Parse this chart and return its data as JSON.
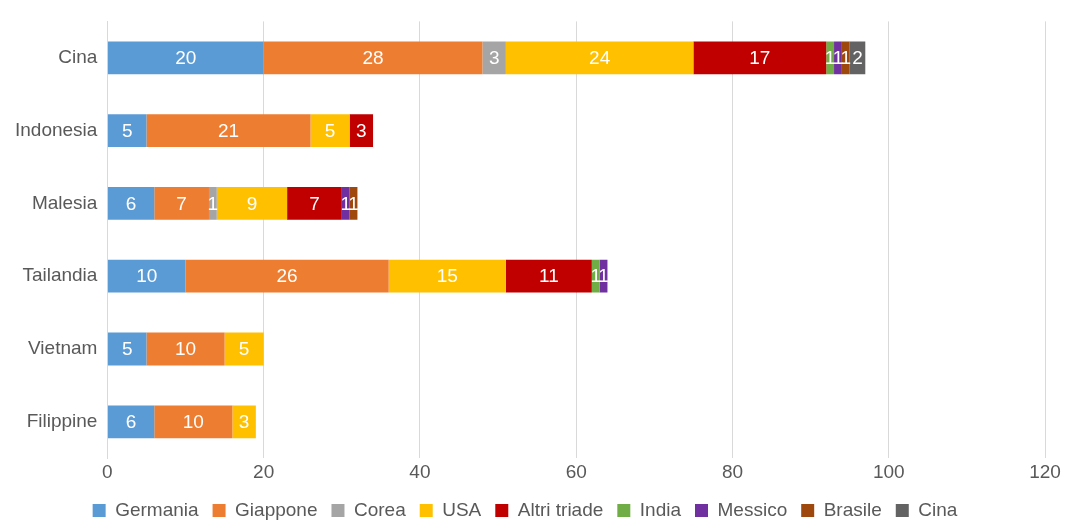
{
  "chart_data": {
    "type": "bar",
    "orientation": "horizontal",
    "stacked": true,
    "data_labels": true,
    "grid": "x",
    "legend": "bottom",
    "categories": [
      "Cina",
      "Indonesia",
      "Malesia",
      "Tailandia",
      "Vietnam",
      "Filippine"
    ],
    "xlim": [
      0,
      120
    ],
    "xticks": [
      0,
      20,
      40,
      60,
      80,
      100,
      120
    ],
    "series": [
      {
        "name": "Germania",
        "color": "#5b9bd5",
        "values": [
          20,
          5,
          6,
          10,
          5,
          6
        ]
      },
      {
        "name": "Giappone",
        "color": "#ed7d31",
        "values": [
          28,
          21,
          7,
          26,
          10,
          10
        ]
      },
      {
        "name": "Corea",
        "color": "#a5a5a5",
        "values": [
          3,
          null,
          1,
          null,
          null,
          null
        ]
      },
      {
        "name": "USA",
        "color": "#ffc000",
        "values": [
          24,
          5,
          9,
          15,
          5,
          3
        ]
      },
      {
        "name": "Altri triade",
        "color": "#c00000",
        "values": [
          17,
          3,
          7,
          11,
          null,
          null
        ]
      },
      {
        "name": "India",
        "color": "#70ad47",
        "values": [
          1,
          null,
          null,
          1,
          null,
          null
        ]
      },
      {
        "name": "Messico",
        "color": "#7030a0",
        "values": [
          1,
          null,
          1,
          1,
          null,
          null
        ]
      },
      {
        "name": "Brasile",
        "color": "#9e480e",
        "values": [
          1,
          null,
          1,
          null,
          null,
          null
        ]
      },
      {
        "name": "Cina",
        "color": "#636363",
        "values": [
          2,
          null,
          null,
          null,
          null,
          null
        ]
      }
    ]
  }
}
